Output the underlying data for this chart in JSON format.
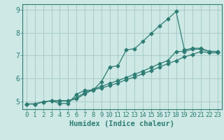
{
  "title": "",
  "xlabel": "Humidex (Indice chaleur)",
  "bg_color": "#cde8e5",
  "grid_color": "#a8ccc9",
  "line_color": "#2e7d74",
  "line1_x": [
    0,
    1,
    2,
    3,
    4,
    5,
    6,
    7,
    8,
    9,
    10,
    11,
    12,
    13,
    14,
    15,
    16,
    17,
    18,
    19,
    20,
    21,
    22,
    23
  ],
  "line1_y": [
    4.88,
    4.88,
    4.97,
    5.02,
    4.9,
    4.9,
    5.3,
    5.48,
    5.48,
    5.85,
    6.5,
    6.55,
    7.25,
    7.3,
    7.62,
    7.97,
    8.3,
    8.6,
    8.93,
    7.25,
    7.32,
    7.32,
    7.18,
    7.18
  ],
  "line2_x": [
    0,
    1,
    2,
    3,
    4,
    5,
    6,
    7,
    8,
    9,
    10,
    11,
    12,
    13,
    14,
    15,
    16,
    17,
    18,
    19,
    20,
    21,
    22,
    23
  ],
  "line2_y": [
    4.88,
    4.88,
    4.97,
    5.02,
    5.02,
    5.02,
    5.15,
    5.38,
    5.52,
    5.65,
    5.78,
    5.9,
    6.04,
    6.18,
    6.32,
    6.48,
    6.64,
    6.78,
    7.18,
    7.18,
    7.28,
    7.28,
    7.18,
    7.18
  ],
  "line3_x": [
    0,
    1,
    2,
    3,
    4,
    5,
    6,
    7,
    8,
    9,
    10,
    11,
    12,
    13,
    14,
    15,
    16,
    17,
    18,
    19,
    20,
    21,
    22,
    23
  ],
  "line3_y": [
    4.88,
    4.88,
    4.97,
    5.02,
    5.02,
    5.02,
    5.1,
    5.32,
    5.5,
    5.58,
    5.68,
    5.8,
    5.94,
    6.06,
    6.2,
    6.34,
    6.5,
    6.64,
    6.78,
    6.94,
    7.05,
    7.18,
    7.12,
    7.12
  ],
  "xlim": [
    -0.5,
    23.5
  ],
  "ylim": [
    4.65,
    9.25
  ],
  "yticks": [
    5,
    6,
    7,
    8,
    9
  ],
  "xticks": [
    0,
    1,
    2,
    3,
    4,
    5,
    6,
    7,
    8,
    9,
    10,
    11,
    12,
    13,
    14,
    15,
    16,
    17,
    18,
    19,
    20,
    21,
    22,
    23
  ],
  "tick_fontsize": 6.5,
  "xlabel_fontsize": 7.5
}
